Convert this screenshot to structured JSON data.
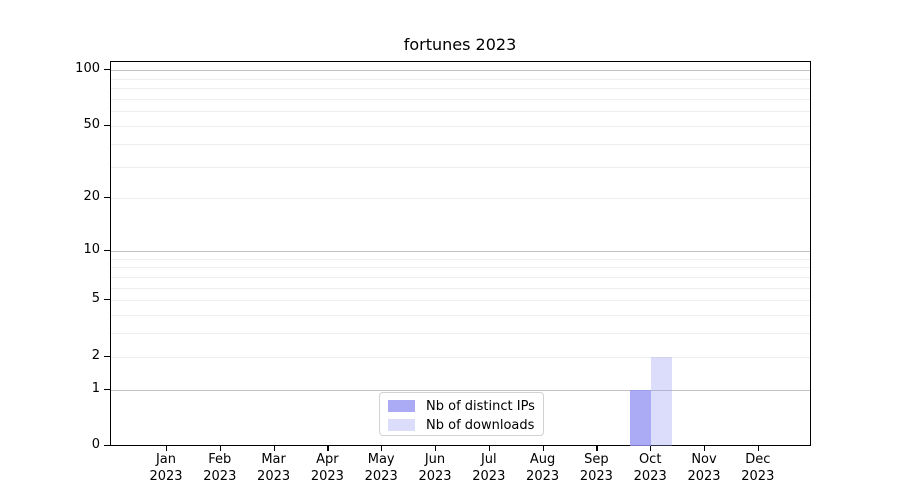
{
  "title": "fortunes 2023",
  "chart_data": {
    "type": "bar",
    "title": "fortunes 2023",
    "categories": [
      "Jan",
      "Feb",
      "Mar",
      "Apr",
      "May",
      "Jun",
      "Jul",
      "Aug",
      "Sep",
      "Oct",
      "Nov",
      "Dec"
    ],
    "x_year": "2023",
    "series": [
      {
        "name": "Nb of distinct IPs",
        "color": "rgba(150,150,243,0.8)",
        "values": [
          0,
          0,
          0,
          0,
          0,
          0,
          0,
          0,
          0,
          1,
          0,
          0
        ]
      },
      {
        "name": "Nb of downloads",
        "color": "rgba(150,150,243,0.33)",
        "values": [
          0,
          0,
          0,
          0,
          0,
          0,
          0,
          0,
          0,
          2,
          0,
          0
        ]
      }
    ],
    "yscale": "log1p",
    "ylim": [
      0,
      111
    ],
    "y_ticks": [
      0,
      1,
      2,
      5,
      10,
      20,
      50,
      100
    ],
    "y_major_grid": [
      1,
      10,
      100
    ],
    "y_minor_grid": [
      2,
      3,
      4,
      5,
      6,
      7,
      8,
      9,
      20,
      30,
      40,
      50,
      60,
      70,
      80,
      90
    ],
    "grid": true,
    "legend_position": "lower center inside",
    "colors": {
      "bar_distinct_ips": "rgba(150,150,243,0.8)",
      "bar_downloads": "rgba(150,150,243,0.33)",
      "major_grid": "#c3c3c3",
      "minor_grid": "#eeeeee",
      "axis": "#000000",
      "legend_border": "#d2d2d2",
      "text": "#000000"
    }
  }
}
